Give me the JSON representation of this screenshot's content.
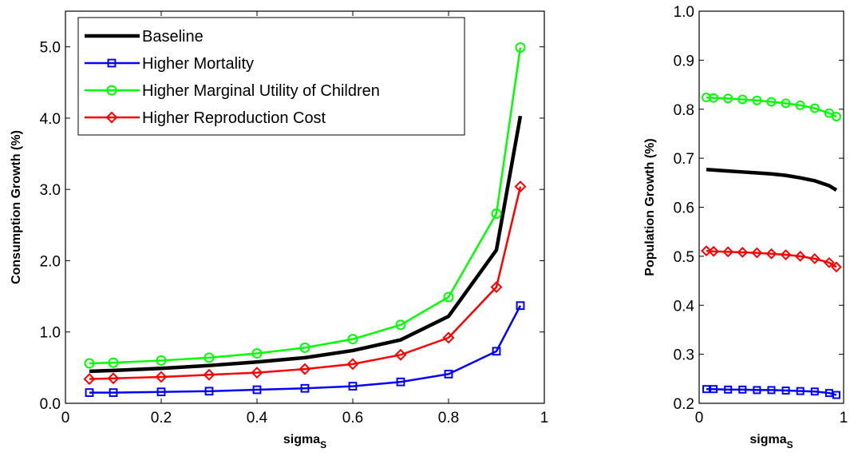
{
  "chart_data": [
    {
      "type": "line",
      "xlabel": "sigma",
      "xlabel_subscript": "S",
      "ylabel": "Consumption Growth (%)",
      "xlim": [
        0,
        1
      ],
      "ylim": [
        0,
        5.5
      ],
      "x_ticks": [
        0,
        0.2,
        0.4,
        0.6,
        0.8,
        1
      ],
      "x_tick_labels": [
        "0",
        "0.2",
        "0.4",
        "0.6",
        "0.8",
        "1"
      ],
      "y_ticks": [
        0,
        1,
        2,
        3,
        4,
        5
      ],
      "y_tick_labels": [
        "0.0",
        "1.0",
        "2.0",
        "3.0",
        "4.0",
        "5.0"
      ],
      "grid": false,
      "legend_position": "top-left",
      "x": [
        0.05,
        0.1,
        0.2,
        0.3,
        0.4,
        0.5,
        0.6,
        0.7,
        0.8,
        0.9,
        0.95
      ],
      "series": [
        {
          "name": "Baseline",
          "color": "#000000",
          "marker": "none",
          "values": [
            0.45,
            0.46,
            0.49,
            0.53,
            0.58,
            0.64,
            0.74,
            0.89,
            1.22,
            2.15,
            4.03
          ]
        },
        {
          "name": "Higher Mortality",
          "color": "#0000ff",
          "marker": "square",
          "values": [
            0.15,
            0.15,
            0.16,
            0.17,
            0.19,
            0.21,
            0.24,
            0.3,
            0.41,
            0.73,
            1.37
          ]
        },
        {
          "name": "Higher Marginal Utility of Children",
          "color": "#00ff00",
          "marker": "circle",
          "values": [
            0.56,
            0.57,
            0.6,
            0.64,
            0.7,
            0.78,
            0.9,
            1.1,
            1.49,
            2.66,
            4.99
          ]
        },
        {
          "name": "Higher Reproduction Cost",
          "color": "#ff0000",
          "marker": "diamond",
          "values": [
            0.34,
            0.35,
            0.37,
            0.4,
            0.43,
            0.48,
            0.55,
            0.68,
            0.92,
            1.63,
            3.04
          ]
        }
      ]
    },
    {
      "type": "line",
      "xlabel": "sigma",
      "xlabel_subscript": "S",
      "ylabel": "Population Growth (%)",
      "xlim": [
        0,
        1
      ],
      "ylim": [
        0.2,
        1.0
      ],
      "x_ticks": [
        0,
        1
      ],
      "x_tick_labels": [
        "0",
        "1"
      ],
      "y_ticks": [
        0.2,
        0.3,
        0.4,
        0.5,
        0.6,
        0.7,
        0.8,
        0.9,
        1.0
      ],
      "y_tick_labels": [
        "0.2",
        "0.3",
        "0.4",
        "0.5",
        "0.6",
        "0.7",
        "0.8",
        "0.9",
        "1.0"
      ],
      "grid": false,
      "x": [
        0.05,
        0.1,
        0.2,
        0.3,
        0.4,
        0.5,
        0.6,
        0.7,
        0.8,
        0.9,
        0.95
      ],
      "series": [
        {
          "color": "#000000",
          "marker": "none",
          "values": [
            0.677,
            0.676,
            0.674,
            0.672,
            0.67,
            0.668,
            0.665,
            0.66,
            0.654,
            0.644,
            0.635
          ]
        },
        {
          "color": "#0000ff",
          "marker": "square",
          "values": [
            0.229,
            0.229,
            0.228,
            0.228,
            0.227,
            0.227,
            0.226,
            0.225,
            0.224,
            0.221,
            0.217
          ]
        },
        {
          "color": "#00ff00",
          "marker": "circle",
          "values": [
            0.824,
            0.823,
            0.822,
            0.82,
            0.818,
            0.815,
            0.812,
            0.808,
            0.802,
            0.792,
            0.785
          ]
        },
        {
          "color": "#ff0000",
          "marker": "diamond",
          "values": [
            0.511,
            0.51,
            0.509,
            0.508,
            0.507,
            0.505,
            0.503,
            0.5,
            0.495,
            0.487,
            0.478
          ]
        }
      ]
    }
  ]
}
